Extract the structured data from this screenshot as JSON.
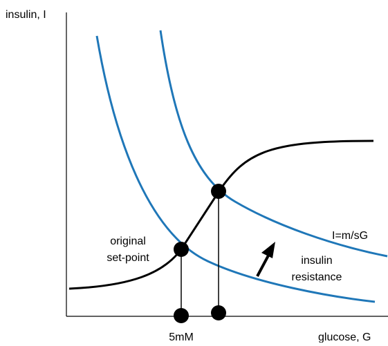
{
  "axes": {
    "y_label": "insulin, I",
    "x_label": "glucose, G",
    "x_marker": "5mM"
  },
  "annotations": {
    "set_point": [
      "original",
      "set-point"
    ],
    "curve_label": "I=m/sG",
    "resistance": [
      "insulin",
      "resistance"
    ]
  }
}
